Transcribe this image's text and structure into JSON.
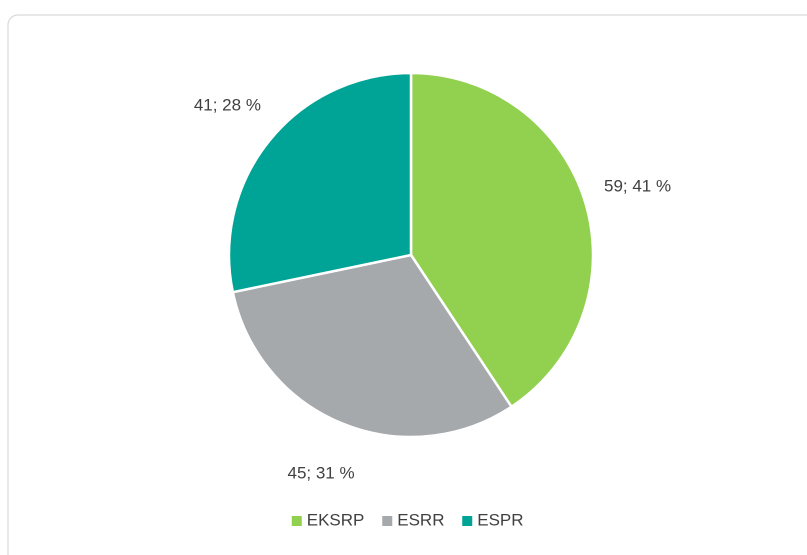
{
  "chart_data": {
    "type": "pie",
    "categories": [
      "EKSRP",
      "ESRR",
      "ESPR"
    ],
    "values": [
      59,
      45,
      41
    ],
    "value_labels": [
      "59; 41 %",
      "45; 31 %",
      "41; 28 %"
    ],
    "colors": [
      "#92d050",
      "#a5a9ac",
      "#00a497"
    ],
    "legend": "bottom"
  }
}
